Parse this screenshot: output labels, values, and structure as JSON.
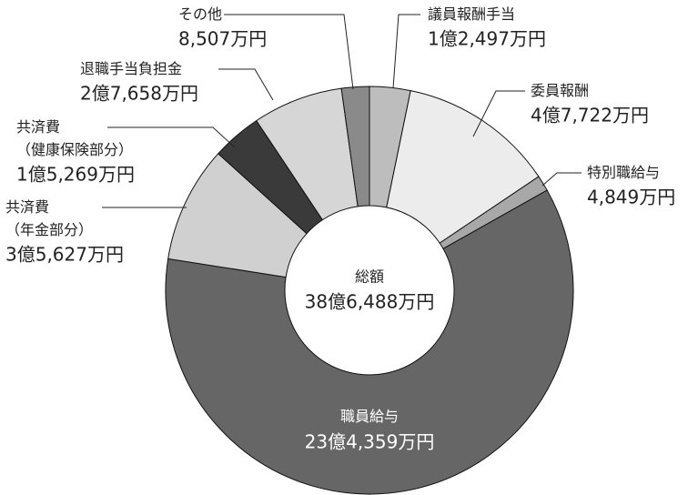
{
  "chart_data": {
    "type": "donut",
    "unit": "万円",
    "categories": [
      "議員報酬手当",
      "委員報酬",
      "特別職給与",
      "職員給与",
      "共済費（年金部分）",
      "共済費（健康保険部分）",
      "退職手当負担金",
      "その他"
    ],
    "values": [
      12497,
      47722,
      4849,
      234359,
      35627,
      15269,
      27658,
      8507
    ],
    "value_labels": [
      "1億2,497万円",
      "4億7,722万円",
      "4,849万円",
      "23億4,359万円",
      "3億5,627万円",
      "1億5,269万円",
      "2億7,658万円",
      "8,507万円"
    ],
    "colors": [
      "#bdbdbd",
      "#ececec",
      "#a8a8a8",
      "#666666",
      "#d0d0d0",
      "#3a3a3a",
      "#d6d6d6",
      "#8a8a8a"
    ],
    "total": {
      "label": "総額",
      "value": 386488,
      "value_label": "38億6,488万円"
    }
  }
}
